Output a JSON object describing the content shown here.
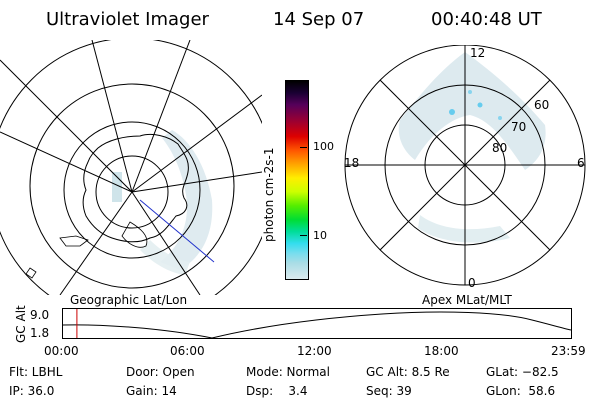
{
  "header": {
    "instrument": "Ultraviolet Imager",
    "date": "14 Sep 07",
    "time": "00:40:48 UT"
  },
  "colorbar": {
    "label": "photon cm-2s-1",
    "ticks": [
      "100",
      "10"
    ]
  },
  "left_panel": {
    "caption": "Geographic Lat/Lon"
  },
  "right_panel": {
    "caption": "Apex MLat/MLT",
    "mlt_labels": {
      "top": "12",
      "left": "18",
      "right": "6",
      "bottom": "0"
    },
    "lat_labels": [
      "60",
      "70",
      "80"
    ]
  },
  "timeline": {
    "ylabel": "GC Alt",
    "yticks": [
      "9.0",
      "1.8"
    ],
    "xticks": [
      "00:00",
      "06:00",
      "12:00",
      "18:00",
      "23:59"
    ],
    "current_hour": 0.68,
    "x_range_hours": [
      0,
      24
    ],
    "y_range_re": [
      1.8,
      9.0
    ]
  },
  "info": {
    "flt": "Flt: LBHL",
    "door": "Door: Open",
    "mode": "Mode: Normal",
    "gc_alt": "GC Alt: 8.5 Re",
    "glat": "GLat: −82.5",
    "ip": "IP: 36.0",
    "gain": "Gain: 14",
    "dsp": "Dsp:    3.4",
    "seq": "Seq: 39",
    "glon": "GLon:  58.6"
  },
  "colors": {
    "aurora_light": "#d8e8ec",
    "aurora_mid": "#b8d8e0",
    "aurora_cyan": "#66ccee",
    "marker_red": "#cc0000",
    "track_blue": "#2233cc"
  }
}
